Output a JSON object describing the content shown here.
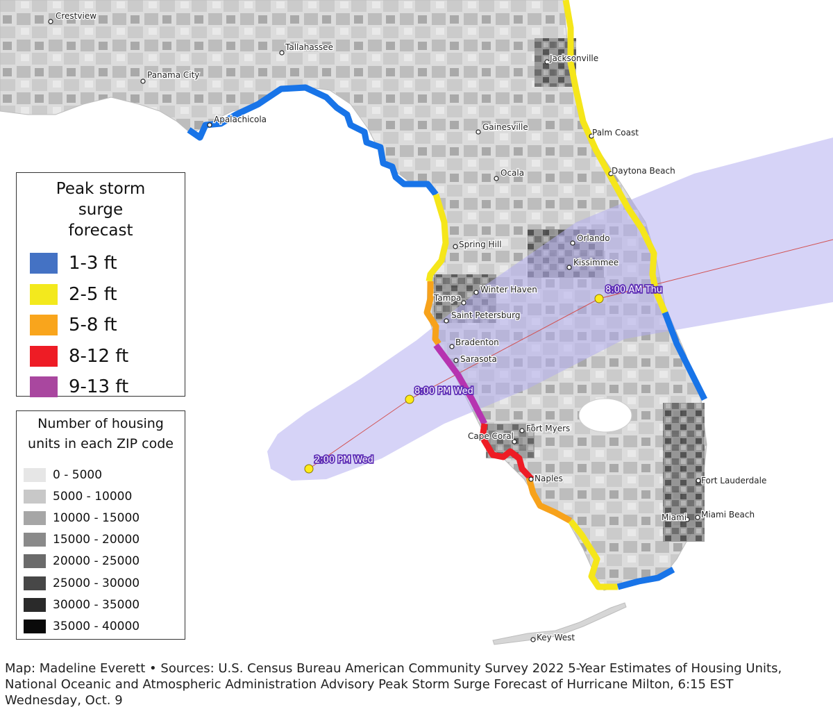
{
  "map": {
    "cities": [
      {
        "name": "Crestview"
      },
      {
        "name": "Tallahassee"
      },
      {
        "name": "Panama City"
      },
      {
        "name": "Apalachicola"
      },
      {
        "name": "Jacksonville"
      },
      {
        "name": "Gainesville"
      },
      {
        "name": "Palm Coast"
      },
      {
        "name": "Ocala"
      },
      {
        "name": "Daytona Beach"
      },
      {
        "name": "Spring Hill"
      },
      {
        "name": "Orlando"
      },
      {
        "name": "Kissimmee"
      },
      {
        "name": "Winter Haven"
      },
      {
        "name": "Tampa"
      },
      {
        "name": "Saint Petersburg"
      },
      {
        "name": "Bradenton"
      },
      {
        "name": "Sarasota"
      },
      {
        "name": "Fort Myers"
      },
      {
        "name": "Cape Coral"
      },
      {
        "name": "Naples"
      },
      {
        "name": "Fort Lauderdale"
      },
      {
        "name": "Miami"
      },
      {
        "name": "Miami Beach"
      },
      {
        "name": "Key West"
      }
    ],
    "track_points": [
      {
        "label": "2:00 PM Wed"
      },
      {
        "label": "8:00 PM Wed"
      },
      {
        "label": "8:00 AM Thu"
      }
    ],
    "colors": {
      "land": "#d9d9d9",
      "cone": "#b4aef0",
      "track_point": "#ffeb1a",
      "surge_1_3": "#1874e8",
      "surge_2_5": "#f5e61a",
      "surge_5_8": "#f7a21b",
      "surge_8_12": "#ee1c25",
      "surge_9_13": "#b634b0"
    }
  },
  "surge_legend": {
    "title": "Peak storm surge forecast",
    "items": [
      {
        "label": "1-3 ft",
        "color": "#4472c4"
      },
      {
        "label": "2-5 ft",
        "color": "#f3e91d"
      },
      {
        "label": "5-8 ft",
        "color": "#f9a51c"
      },
      {
        "label": "8-12 ft",
        "color": "#ee1c25"
      },
      {
        "label": "9-13 ft",
        "color": "#a9479f"
      }
    ]
  },
  "housing_legend": {
    "title": "Number of housing units in each ZIP code",
    "items": [
      {
        "label": "0 - 5000",
        "color": "#e6e6e6"
      },
      {
        "label": "5000 - 10000",
        "color": "#c8c8c8"
      },
      {
        "label": "10000 - 15000",
        "color": "#a6a6a6"
      },
      {
        "label": "15000 - 20000",
        "color": "#8a8a8a"
      },
      {
        "label": "20000 - 25000",
        "color": "#6b6b6b"
      },
      {
        "label": "25000 - 30000",
        "color": "#474747"
      },
      {
        "label": "30000 - 35000",
        "color": "#2a2a2a"
      },
      {
        "label": "35000 - 40000",
        "color": "#0a0a0a"
      }
    ]
  },
  "caption": {
    "line1": "Map: Madeline Everett • Sources: U.S. Census Bureau American Community Survey 2022 5-Year Estimates of Housing Units,",
    "line2": "National Oceanic and Atmospheric Administration Advisory Peak Storm Surge Forecast of Hurricane Milton, 6:15 EST",
    "line3": "Wednesday, Oct. 9"
  }
}
